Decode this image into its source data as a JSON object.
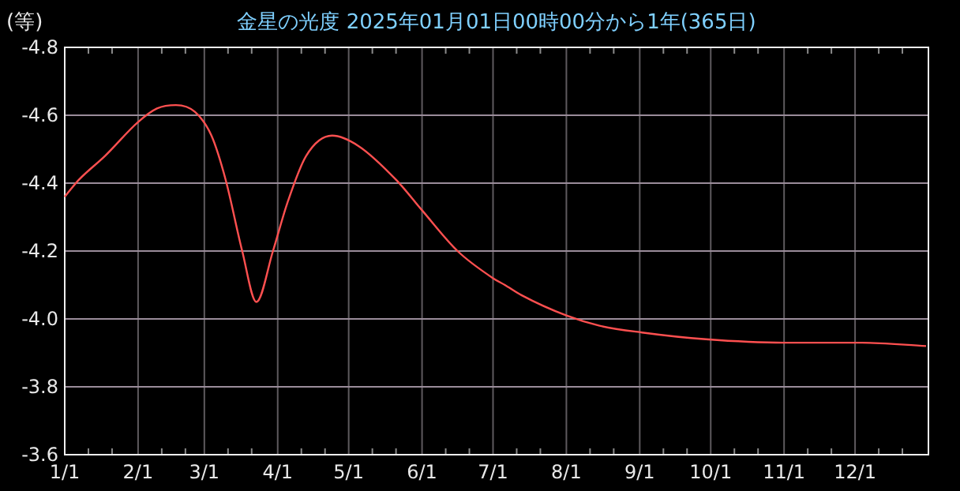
{
  "chart_data": {
    "type": "line",
    "title": "金星の光度  2025年01月01日00時00分から1年(365日)",
    "ylabel": "(等)",
    "x": [
      "2025-01-01",
      "2025-01-07",
      "2025-01-18",
      "2025-02-01",
      "2025-02-09",
      "2025-02-17",
      "2025-02-25",
      "2025-03-04",
      "2025-03-10",
      "2025-03-17",
      "2025-03-23",
      "2025-03-30",
      "2025-04-05",
      "2025-04-13",
      "2025-04-24",
      "2025-05-05",
      "2025-05-21",
      "2025-06-01",
      "2025-06-16",
      "2025-07-01",
      "2025-07-06",
      "2025-07-13",
      "2025-08-01",
      "2025-08-15",
      "2025-09-02",
      "2025-09-29",
      "2025-11-01",
      "2025-12-04",
      "2025-12-31"
    ],
    "series": [
      {
        "color": "#ff5050",
        "values": [
          -4.36,
          -4.41,
          -4.48,
          -4.58,
          -4.62,
          -4.63,
          -4.61,
          -4.54,
          -4.41,
          -4.2,
          -4.05,
          -4.2,
          -4.34,
          -4.48,
          -4.54,
          -4.51,
          -4.41,
          -4.32,
          -4.2,
          -4.12,
          -4.1,
          -4.07,
          -4.01,
          -3.98,
          -3.96,
          -3.94,
          -3.93,
          -3.93,
          -3.92
        ]
      }
    ],
    "xlim": [
      "2025-01-01",
      "2026-01-01"
    ],
    "xticks": [
      {
        "value": "2025-01-01",
        "label": "1/1"
      },
      {
        "value": "2025-01-11",
        "label": null
      },
      {
        "value": "2025-01-21",
        "label": null
      },
      {
        "value": "2025-02-01",
        "label": "2/1"
      },
      {
        "value": "2025-02-11",
        "label": null
      },
      {
        "value": "2025-02-21",
        "label": null
      },
      {
        "value": "2025-03-01",
        "label": "3/1"
      },
      {
        "value": "2025-03-11",
        "label": null
      },
      {
        "value": "2025-03-21",
        "label": null
      },
      {
        "value": "2025-04-01",
        "label": "4/1"
      },
      {
        "value": "2025-04-11",
        "label": null
      },
      {
        "value": "2025-04-21",
        "label": null
      },
      {
        "value": "2025-05-01",
        "label": "5/1"
      },
      {
        "value": "2025-05-11",
        "label": null
      },
      {
        "value": "2025-05-21",
        "label": null
      },
      {
        "value": "2025-06-01",
        "label": "6/1"
      },
      {
        "value": "2025-06-11",
        "label": null
      },
      {
        "value": "2025-06-21",
        "label": null
      },
      {
        "value": "2025-07-01",
        "label": "7/1"
      },
      {
        "value": "2025-07-11",
        "label": null
      },
      {
        "value": "2025-07-21",
        "label": null
      },
      {
        "value": "2025-08-01",
        "label": "8/1"
      },
      {
        "value": "2025-08-11",
        "label": null
      },
      {
        "value": "2025-08-21",
        "label": null
      },
      {
        "value": "2025-09-01",
        "label": "9/1"
      },
      {
        "value": "2025-09-11",
        "label": null
      },
      {
        "value": "2025-09-21",
        "label": null
      },
      {
        "value": "2025-10-01",
        "label": "10/1"
      },
      {
        "value": "2025-10-11",
        "label": null
      },
      {
        "value": "2025-10-21",
        "label": null
      },
      {
        "value": "2025-11-01",
        "label": "11/1"
      },
      {
        "value": "2025-11-11",
        "label": null
      },
      {
        "value": "2025-11-21",
        "label": null
      },
      {
        "value": "2025-12-01",
        "label": "12/1"
      },
      {
        "value": "2025-12-11",
        "label": null
      },
      {
        "value": "2025-12-21",
        "label": null
      }
    ],
    "ylim": [
      -3.6,
      -4.8
    ],
    "yticks": [
      -4.8,
      -4.6,
      -4.4,
      -4.2,
      {
        "value": -4.0,
        "label": "-4.0"
      },
      -3.8,
      -3.6
    ],
    "grid": true,
    "marker": "none",
    "line_style": "solid"
  }
}
